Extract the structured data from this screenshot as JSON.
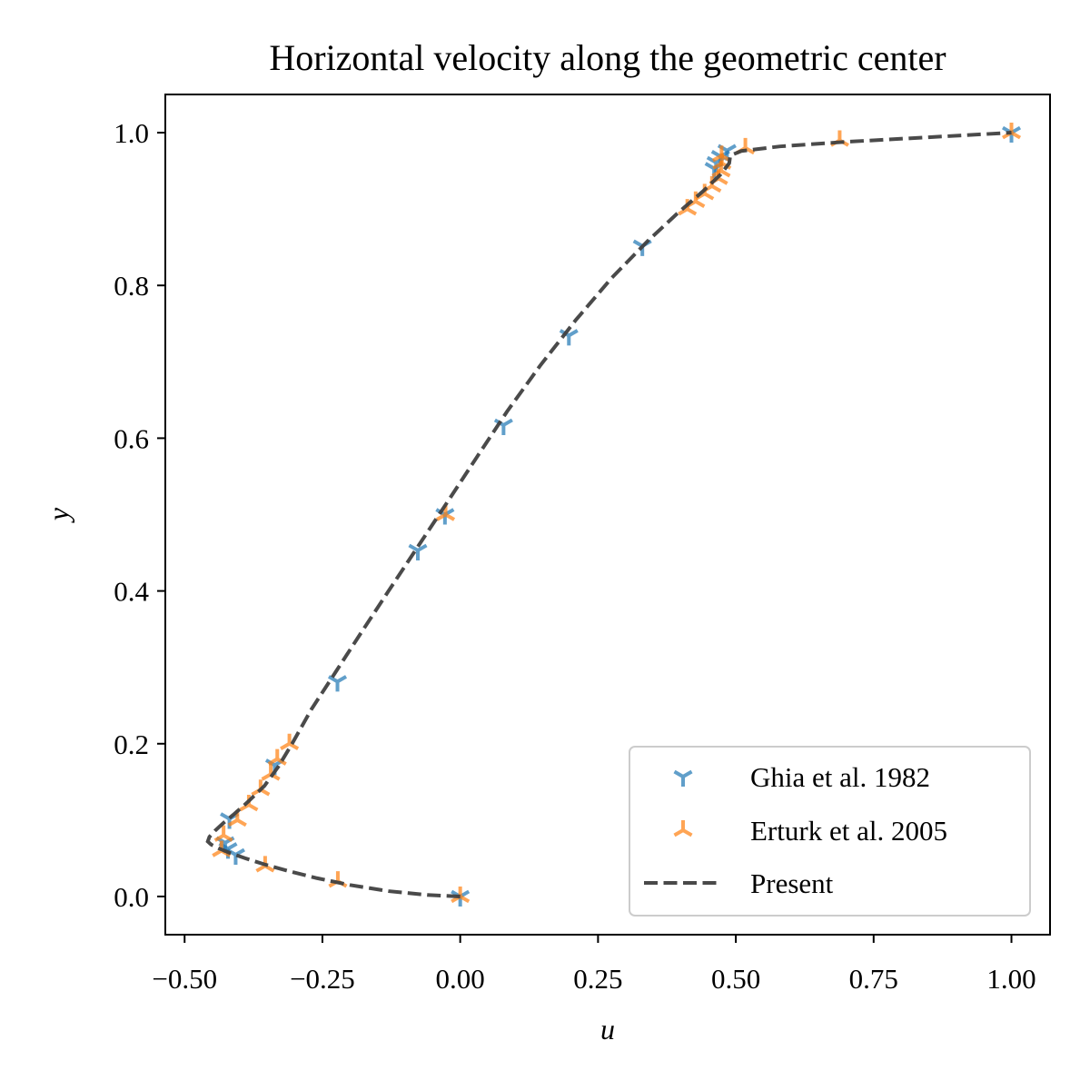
{
  "chart_data": {
    "type": "scatter",
    "title": "Horizontal velocity along the geometric center",
    "xlabel": "u",
    "ylabel": "y",
    "xlim": [
      -0.535,
      1.07
    ],
    "ylim": [
      -0.05,
      1.05
    ],
    "xticks": [
      -0.5,
      -0.25,
      0.0,
      0.25,
      0.5,
      0.75,
      1.0
    ],
    "xtick_labels": [
      "−0.50",
      "−0.25",
      "0.00",
      "0.25",
      "0.50",
      "0.75",
      "1.00"
    ],
    "yticks": [
      0.0,
      0.2,
      0.4,
      0.6,
      0.8,
      1.0
    ],
    "ytick_labels": [
      "0.0",
      "0.2",
      "0.4",
      "0.6",
      "0.8",
      "1.0"
    ],
    "grid": false,
    "legend_position": "lower-right",
    "series": [
      {
        "name": "Ghia et al. 1982",
        "kind": "scatter",
        "marker": "tri-down",
        "color": "#1f77b4",
        "points": [
          [
            1.0,
            1.0
          ],
          [
            0.484,
            0.9766
          ],
          [
            0.4723,
            0.9688
          ],
          [
            0.4641,
            0.9609
          ],
          [
            0.4606,
            0.9531
          ],
          [
            0.3304,
            0.8516
          ],
          [
            0.1971,
            0.7344
          ],
          [
            0.0786,
            0.6172
          ],
          [
            -0.0277,
            0.5
          ],
          [
            -0.0769,
            0.4531
          ],
          [
            -0.2227,
            0.2813
          ],
          [
            -0.3365,
            0.1719
          ],
          [
            -0.4187,
            0.1016
          ],
          [
            -0.4264,
            0.0703
          ],
          [
            -0.4213,
            0.0625
          ],
          [
            -0.4074,
            0.0547
          ],
          [
            0.0,
            0.0
          ]
        ]
      },
      {
        "name": "Erturk et al. 2005",
        "kind": "scatter",
        "marker": "tri-up",
        "color": "#ff7f0e",
        "points": [
          [
            1.0,
            1.0
          ],
          [
            0.6884,
            0.99
          ],
          [
            0.5173,
            0.98
          ],
          [
            0.4741,
            0.97
          ],
          [
            0.4747,
            0.96
          ],
          [
            0.4733,
            0.95
          ],
          [
            0.4687,
            0.94
          ],
          [
            0.4567,
            0.93
          ],
          [
            0.4434,
            0.92
          ],
          [
            0.4271,
            0.91
          ],
          [
            0.412,
            0.9
          ],
          [
            -0.0266,
            0.5
          ],
          [
            -0.3099,
            0.2
          ],
          [
            -0.3319,
            0.18
          ],
          [
            -0.3437,
            0.16
          ],
          [
            -0.3622,
            0.14
          ],
          [
            -0.3835,
            0.12
          ],
          [
            -0.4043,
            0.1
          ],
          [
            -0.4293,
            0.08
          ],
          [
            -0.4332,
            0.06
          ],
          [
            -0.3539,
            0.04
          ],
          [
            -0.222,
            0.02
          ],
          [
            0.0,
            0.0
          ]
        ]
      },
      {
        "name": "Present",
        "kind": "line",
        "line_style": "dashed",
        "color": "#404040",
        "points": [
          [
            0.0,
            0.0
          ],
          [
            -0.06,
            0.002
          ],
          [
            -0.13,
            0.007
          ],
          [
            -0.2,
            0.015
          ],
          [
            -0.26,
            0.024
          ],
          [
            -0.31,
            0.033
          ],
          [
            -0.355,
            0.042
          ],
          [
            -0.39,
            0.05
          ],
          [
            -0.418,
            0.057
          ],
          [
            -0.438,
            0.063
          ],
          [
            -0.452,
            0.068
          ],
          [
            -0.458,
            0.072
          ],
          [
            -0.455,
            0.078
          ],
          [
            -0.445,
            0.086
          ],
          [
            -0.43,
            0.096
          ],
          [
            -0.41,
            0.108
          ],
          [
            -0.385,
            0.124
          ],
          [
            -0.355,
            0.145
          ],
          [
            -0.33,
            0.17
          ],
          [
            -0.305,
            0.2
          ],
          [
            -0.27,
            0.245
          ],
          [
            -0.225,
            0.295
          ],
          [
            -0.18,
            0.345
          ],
          [
            -0.13,
            0.4
          ],
          [
            -0.075,
            0.46
          ],
          [
            -0.02,
            0.52
          ],
          [
            0.03,
            0.575
          ],
          [
            0.085,
            0.635
          ],
          [
            0.145,
            0.695
          ],
          [
            0.21,
            0.755
          ],
          [
            0.275,
            0.81
          ],
          [
            0.34,
            0.858
          ],
          [
            0.395,
            0.895
          ],
          [
            0.44,
            0.923
          ],
          [
            0.472,
            0.945
          ],
          [
            0.488,
            0.96
          ],
          [
            0.49,
            0.97
          ],
          [
            0.51,
            0.976
          ],
          [
            0.58,
            0.982
          ],
          [
            0.7,
            0.988
          ],
          [
            0.85,
            0.994
          ],
          [
            1.0,
            1.0
          ]
        ]
      }
    ]
  }
}
